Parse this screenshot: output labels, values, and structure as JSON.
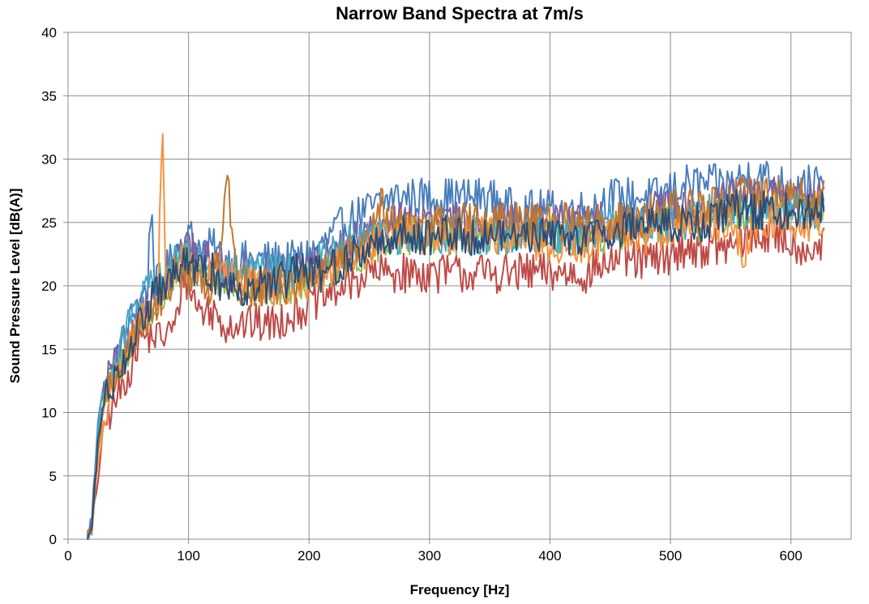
{
  "chart_data": {
    "type": "line",
    "title": "Narrow Band Spectra at 7m/s",
    "xlabel": "Frequency [Hz]",
    "ylabel": "Sound Pressure Level [dB(A)]",
    "xlim": [
      0,
      650
    ],
    "ylim": [
      0,
      40
    ],
    "x_ticks": [
      0,
      100,
      200,
      300,
      400,
      500,
      600
    ],
    "y_ticks": [
      0,
      5,
      10,
      15,
      20,
      25,
      30,
      35,
      40
    ],
    "grid": true,
    "legend": "none",
    "series": [
      {
        "color": "#4a7ebb",
        "points": [
          [
            16,
            0
          ],
          [
            20,
            2
          ],
          [
            25,
            10
          ],
          [
            30,
            12
          ],
          [
            40,
            14
          ],
          [
            50,
            17
          ],
          [
            60,
            19
          ],
          [
            66,
            20
          ],
          [
            69,
            27
          ],
          [
            72,
            20
          ],
          [
            80,
            21
          ],
          [
            90,
            23
          ],
          [
            100,
            24
          ],
          [
            110,
            23
          ],
          [
            120,
            23
          ],
          [
            130,
            22
          ],
          [
            140,
            22
          ],
          [
            150,
            22
          ],
          [
            170,
            22
          ],
          [
            190,
            22
          ],
          [
            210,
            23
          ],
          [
            230,
            25
          ],
          [
            250,
            26
          ],
          [
            270,
            27
          ],
          [
            290,
            27
          ],
          [
            310,
            27
          ],
          [
            330,
            27
          ],
          [
            350,
            27
          ],
          [
            370,
            26
          ],
          [
            390,
            26
          ],
          [
            410,
            26
          ],
          [
            430,
            26
          ],
          [
            450,
            27
          ],
          [
            470,
            27
          ],
          [
            490,
            27
          ],
          [
            510,
            28
          ],
          [
            530,
            28
          ],
          [
            550,
            28
          ],
          [
            570,
            29
          ],
          [
            590,
            28
          ],
          [
            610,
            28
          ],
          [
            628,
            28
          ]
        ]
      },
      {
        "color": "#be4b48",
        "points": [
          [
            16,
            0
          ],
          [
            20,
            1
          ],
          [
            25,
            5
          ],
          [
            30,
            9
          ],
          [
            40,
            11
          ],
          [
            50,
            13
          ],
          [
            60,
            16
          ],
          [
            70,
            16
          ],
          [
            80,
            16
          ],
          [
            90,
            17
          ],
          [
            95,
            21
          ],
          [
            100,
            20
          ],
          [
            110,
            18
          ],
          [
            120,
            18
          ],
          [
            130,
            17
          ],
          [
            140,
            17
          ],
          [
            150,
            17
          ],
          [
            170,
            17
          ],
          [
            190,
            18
          ],
          [
            210,
            19
          ],
          [
            230,
            20
          ],
          [
            250,
            21
          ],
          [
            270,
            21
          ],
          [
            290,
            21
          ],
          [
            310,
            21
          ],
          [
            330,
            21
          ],
          [
            350,
            21
          ],
          [
            370,
            21
          ],
          [
            390,
            21
          ],
          [
            410,
            21
          ],
          [
            430,
            21
          ],
          [
            450,
            22
          ],
          [
            470,
            22
          ],
          [
            490,
            22
          ],
          [
            510,
            23
          ],
          [
            530,
            23
          ],
          [
            550,
            23
          ],
          [
            570,
            24
          ],
          [
            590,
            24
          ],
          [
            610,
            23
          ],
          [
            628,
            23
          ]
        ]
      },
      {
        "color": "#98b954",
        "points": [
          [
            16,
            0
          ],
          [
            20,
            1
          ],
          [
            25,
            8
          ],
          [
            30,
            11
          ],
          [
            40,
            13
          ],
          [
            50,
            15
          ],
          [
            60,
            17
          ],
          [
            70,
            18
          ],
          [
            80,
            19
          ],
          [
            90,
            21
          ],
          [
            100,
            22
          ],
          [
            110,
            21
          ],
          [
            120,
            21
          ],
          [
            130,
            20
          ],
          [
            140,
            20
          ],
          [
            150,
            20
          ],
          [
            170,
            20
          ],
          [
            190,
            20
          ],
          [
            210,
            21
          ],
          [
            230,
            22
          ],
          [
            250,
            23
          ],
          [
            270,
            24
          ],
          [
            290,
            24
          ],
          [
            310,
            24
          ],
          [
            330,
            24
          ],
          [
            350,
            24
          ],
          [
            370,
            24
          ],
          [
            390,
            24
          ],
          [
            410,
            24
          ],
          [
            430,
            24
          ],
          [
            450,
            24
          ],
          [
            470,
            24
          ],
          [
            490,
            25
          ],
          [
            510,
            25
          ],
          [
            530,
            25
          ],
          [
            550,
            26
          ],
          [
            570,
            26
          ],
          [
            590,
            26
          ],
          [
            610,
            26
          ],
          [
            628,
            26
          ]
        ]
      },
      {
        "color": "#7d60a0",
        "points": [
          [
            16,
            0
          ],
          [
            20,
            1
          ],
          [
            25,
            9
          ],
          [
            30,
            12
          ],
          [
            40,
            14
          ],
          [
            50,
            16
          ],
          [
            60,
            18
          ],
          [
            70,
            19
          ],
          [
            80,
            20
          ],
          [
            90,
            22
          ],
          [
            100,
            23
          ],
          [
            110,
            22
          ],
          [
            120,
            22
          ],
          [
            130,
            21
          ],
          [
            140,
            21
          ],
          [
            150,
            21
          ],
          [
            170,
            21
          ],
          [
            190,
            21
          ],
          [
            210,
            22
          ],
          [
            230,
            23
          ],
          [
            250,
            24
          ],
          [
            270,
            25
          ],
          [
            290,
            25
          ],
          [
            310,
            25
          ],
          [
            330,
            25
          ],
          [
            350,
            25
          ],
          [
            370,
            25
          ],
          [
            390,
            25
          ],
          [
            410,
            25
          ],
          [
            430,
            25
          ],
          [
            450,
            25
          ],
          [
            470,
            25
          ],
          [
            490,
            26
          ],
          [
            510,
            26
          ],
          [
            530,
            26
          ],
          [
            550,
            27
          ],
          [
            570,
            27
          ],
          [
            590,
            27
          ],
          [
            610,
            27
          ],
          [
            628,
            27
          ]
        ]
      },
      {
        "color": "#46aac5",
        "points": [
          [
            16,
            0
          ],
          [
            20,
            1
          ],
          [
            25,
            9
          ],
          [
            30,
            12
          ],
          [
            40,
            14
          ],
          [
            50,
            17
          ],
          [
            60,
            19
          ],
          [
            70,
            20
          ],
          [
            80,
            21
          ],
          [
            90,
            22
          ],
          [
            100,
            22
          ],
          [
            110,
            22
          ],
          [
            120,
            21
          ],
          [
            130,
            21
          ],
          [
            140,
            21
          ],
          [
            150,
            21
          ],
          [
            170,
            21
          ],
          [
            190,
            21
          ],
          [
            210,
            22
          ],
          [
            230,
            23
          ],
          [
            250,
            24
          ],
          [
            270,
            24
          ],
          [
            290,
            24
          ],
          [
            310,
            24
          ],
          [
            330,
            24
          ],
          [
            350,
            24
          ],
          [
            370,
            24
          ],
          [
            390,
            24
          ],
          [
            410,
            24
          ],
          [
            430,
            24
          ],
          [
            450,
            25
          ],
          [
            470,
            25
          ],
          [
            490,
            25
          ],
          [
            510,
            25
          ],
          [
            530,
            26
          ],
          [
            550,
            26
          ],
          [
            570,
            26
          ],
          [
            590,
            26
          ],
          [
            610,
            26
          ],
          [
            628,
            26
          ]
        ]
      },
      {
        "color": "#f69240",
        "points": [
          [
            16,
            0
          ],
          [
            20,
            1
          ],
          [
            25,
            6
          ],
          [
            30,
            10
          ],
          [
            40,
            13
          ],
          [
            50,
            15
          ],
          [
            60,
            17
          ],
          [
            70,
            18
          ],
          [
            75,
            19
          ],
          [
            77,
            30
          ],
          [
            79,
            31
          ],
          [
            81,
            20
          ],
          [
            90,
            22
          ],
          [
            100,
            22
          ],
          [
            110,
            21
          ],
          [
            120,
            21
          ],
          [
            130,
            21
          ],
          [
            140,
            20
          ],
          [
            150,
            20
          ],
          [
            170,
            20
          ],
          [
            190,
            20
          ],
          [
            210,
            21
          ],
          [
            230,
            22
          ],
          [
            250,
            23
          ],
          [
            270,
            24
          ],
          [
            290,
            24
          ],
          [
            310,
            24
          ],
          [
            330,
            24
          ],
          [
            350,
            24
          ],
          [
            370,
            24
          ],
          [
            390,
            23
          ],
          [
            410,
            23
          ],
          [
            430,
            23
          ],
          [
            450,
            24
          ],
          [
            470,
            24
          ],
          [
            490,
            24
          ],
          [
            510,
            25
          ],
          [
            530,
            25
          ],
          [
            550,
            25
          ],
          [
            560,
            22
          ],
          [
            570,
            25
          ],
          [
            590,
            25
          ],
          [
            610,
            25
          ],
          [
            628,
            25
          ]
        ]
      },
      {
        "color": "#c0772f",
        "points": [
          [
            16,
            0
          ],
          [
            20,
            1
          ],
          [
            25,
            7
          ],
          [
            30,
            11
          ],
          [
            40,
            13
          ],
          [
            50,
            15
          ],
          [
            60,
            17
          ],
          [
            70,
            18
          ],
          [
            80,
            19
          ],
          [
            90,
            21
          ],
          [
            100,
            21
          ],
          [
            110,
            20
          ],
          [
            120,
            20
          ],
          [
            128,
            25
          ],
          [
            132,
            30
          ],
          [
            136,
            24
          ],
          [
            140,
            20
          ],
          [
            150,
            20
          ],
          [
            170,
            20
          ],
          [
            190,
            20
          ],
          [
            210,
            21
          ],
          [
            230,
            22
          ],
          [
            250,
            24
          ],
          [
            260,
            27
          ],
          [
            270,
            25
          ],
          [
            290,
            25
          ],
          [
            310,
            25
          ],
          [
            330,
            25
          ],
          [
            350,
            25
          ],
          [
            370,
            25
          ],
          [
            390,
            25
          ],
          [
            410,
            25
          ],
          [
            430,
            25
          ],
          [
            450,
            25
          ],
          [
            470,
            25
          ],
          [
            490,
            26
          ],
          [
            510,
            26
          ],
          [
            530,
            26
          ],
          [
            550,
            27
          ],
          [
            570,
            27
          ],
          [
            590,
            27
          ],
          [
            610,
            27
          ],
          [
            628,
            27
          ]
        ]
      },
      {
        "color": "#2c4d75",
        "points": [
          [
            16,
            0
          ],
          [
            20,
            1
          ],
          [
            25,
            8
          ],
          [
            30,
            11
          ],
          [
            40,
            13
          ],
          [
            50,
            15
          ],
          [
            60,
            17
          ],
          [
            70,
            19
          ],
          [
            80,
            20
          ],
          [
            90,
            21
          ],
          [
            100,
            22
          ],
          [
            110,
            21
          ],
          [
            120,
            21
          ],
          [
            130,
            20
          ],
          [
            140,
            20
          ],
          [
            150,
            20
          ],
          [
            170,
            20
          ],
          [
            190,
            21
          ],
          [
            210,
            21
          ],
          [
            230,
            22
          ],
          [
            250,
            23
          ],
          [
            270,
            24
          ],
          [
            290,
            24
          ],
          [
            310,
            24
          ],
          [
            330,
            24
          ],
          [
            350,
            24
          ],
          [
            370,
            24
          ],
          [
            390,
            24
          ],
          [
            410,
            24
          ],
          [
            430,
            24
          ],
          [
            450,
            24
          ],
          [
            470,
            25
          ],
          [
            490,
            25
          ],
          [
            510,
            25
          ],
          [
            530,
            25
          ],
          [
            550,
            26
          ],
          [
            570,
            26
          ],
          [
            590,
            26
          ],
          [
            610,
            26
          ],
          [
            628,
            26
          ]
        ]
      }
    ]
  }
}
